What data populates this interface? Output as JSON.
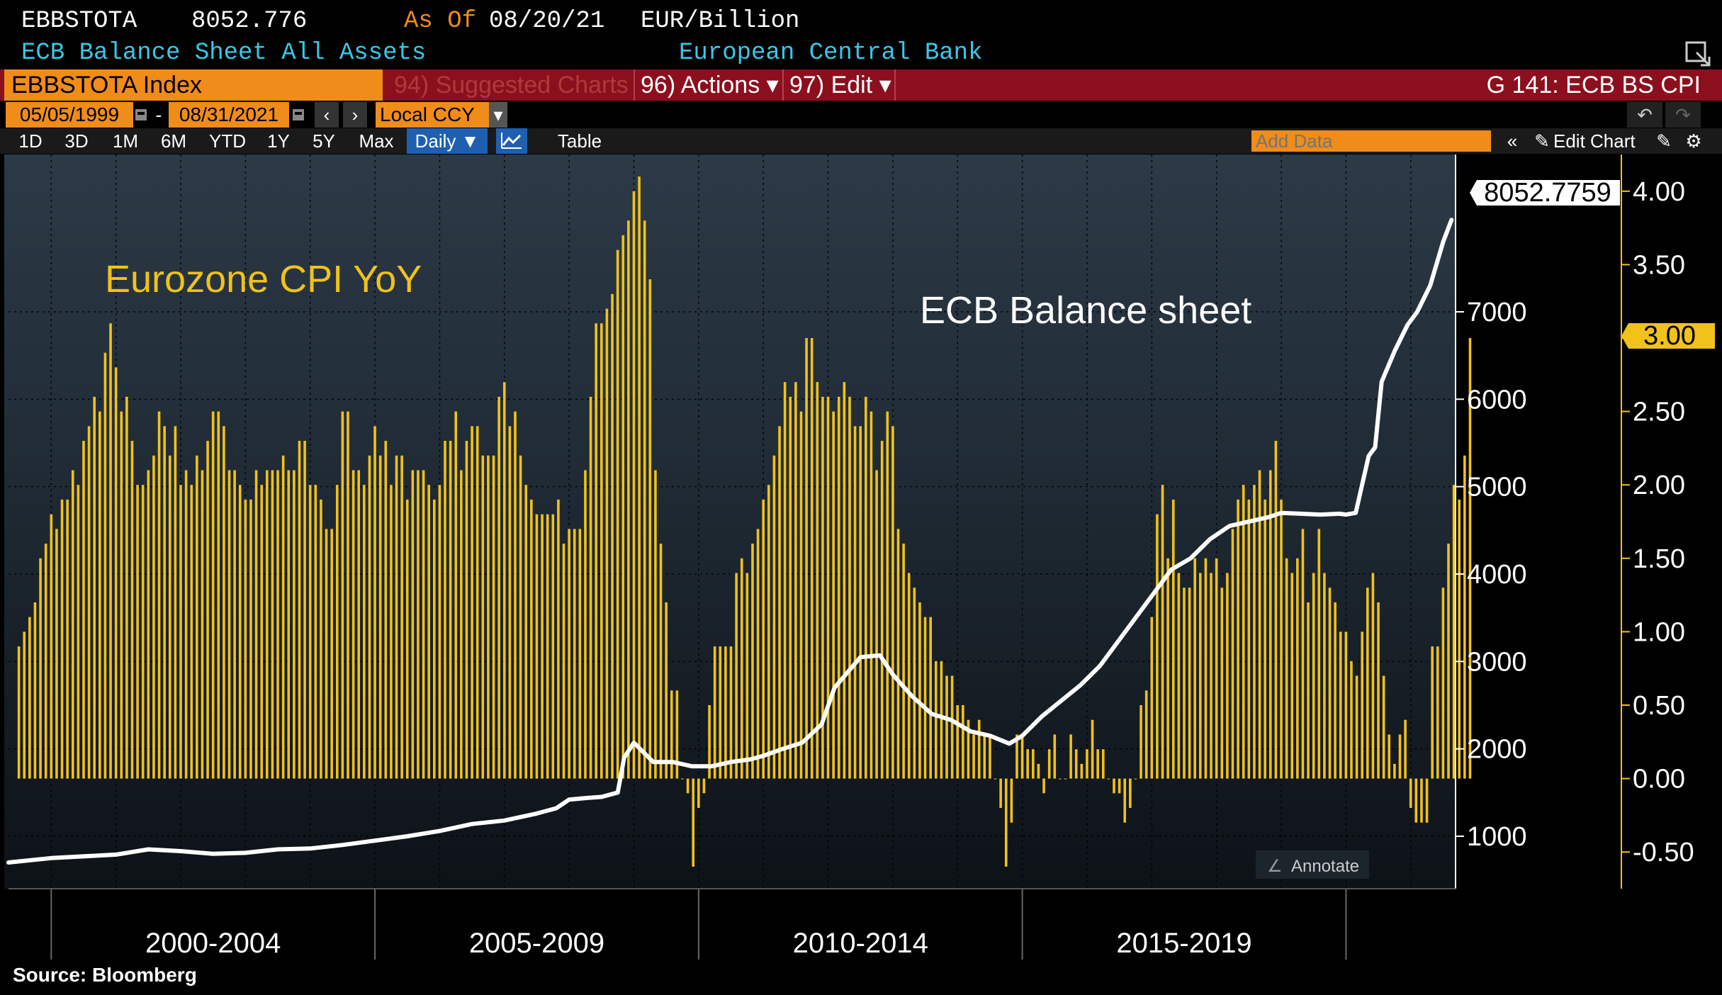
{
  "header": {
    "ticker": "EBBSTOTA",
    "last_value": "8052.776",
    "as_of_label": "As Of",
    "as_of_date": "08/20/21",
    "units": "EUR/Billion",
    "description": "ECB Balance Sheet All Assets",
    "source_name": "European Central Bank"
  },
  "toolbar": {
    "security": "EBBSTOTA Index",
    "suggested": "94) Suggested Charts",
    "actions": "96) Actions ▾",
    "edit": "97) Edit ▾",
    "chart_id": "G 141: ECB BS CPI"
  },
  "range": {
    "start": "05/05/1999",
    "dash": "-",
    "end": "08/31/2021",
    "currency": "Local CCY"
  },
  "periods": [
    "1D",
    "3D",
    "1M",
    "6M",
    "YTD",
    "1Y",
    "5Y",
    "Max"
  ],
  "frequency": "Daily ▼",
  "table_label": "Table",
  "add_data_placeholder": "Add Data",
  "edit_chart": "Edit Chart",
  "annotate_label": "Annotate",
  "footer": "Source: Bloomberg",
  "colors": {
    "bars": "#f0c21a",
    "line": "#ffffff",
    "axis_right": "#f0c21a",
    "header_cyan": "#3ac8e6",
    "header_orange": "#f08c1a",
    "red": "#8c0f1e"
  },
  "chart_data": {
    "type": "bar",
    "title": "",
    "annotations": [
      "Eurozone CPI YoY",
      "ECB Balance sheet"
    ],
    "x_labels": [
      "2000-2004",
      "2005-2009",
      "2010-2014",
      "2015-2019"
    ],
    "x_range": [
      1999.34,
      2021.67
    ],
    "series": [
      {
        "name": "Eurozone CPI YoY",
        "kind": "bar",
        "axis": "right",
        "ylim": [
          -0.75,
          4.25
        ],
        "y_ticks": [
          -0.5,
          0.0,
          0.5,
          1.0,
          1.5,
          2.0,
          2.5,
          3.0,
          3.5,
          4.0
        ],
        "y_tick_labels": [
          "-0.50",
          "0.00",
          "0.50",
          "1.00",
          "1.50",
          "2.00",
          "2.50",
          "3.00",
          "3.50",
          "4.00"
        ],
        "last_value_label": "3.00",
        "start_year": 1999.5,
        "step": 0.08333,
        "values": [
          0.9,
          1.0,
          1.1,
          1.2,
          1.5,
          1.6,
          1.8,
          1.7,
          1.9,
          1.9,
          2.1,
          2.0,
          2.3,
          2.4,
          2.6,
          2.5,
          2.9,
          3.1,
          2.8,
          2.5,
          2.6,
          2.3,
          2.0,
          2.0,
          2.1,
          2.2,
          2.5,
          2.4,
          2.2,
          2.4,
          2.0,
          2.1,
          2.0,
          2.2,
          2.1,
          2.3,
          2.5,
          2.5,
          2.4,
          2.1,
          2.1,
          2.0,
          1.9,
          1.9,
          2.1,
          2.0,
          2.1,
          2.1,
          2.1,
          2.2,
          2.1,
          2.1,
          2.3,
          2.3,
          2.0,
          2.0,
          1.9,
          1.7,
          1.7,
          2.0,
          2.5,
          2.5,
          2.1,
          2.1,
          2.0,
          2.2,
          2.4,
          2.2,
          2.3,
          2.0,
          2.2,
          2.2,
          1.9,
          2.1,
          2.1,
          2.1,
          2.0,
          1.9,
          2.0,
          2.3,
          2.3,
          2.5,
          2.1,
          2.3,
          2.4,
          2.4,
          2.2,
          2.2,
          2.2,
          2.6,
          2.7,
          2.4,
          2.5,
          2.2,
          2.0,
          1.9,
          1.8,
          1.8,
          1.8,
          1.8,
          1.9,
          1.6,
          1.7,
          1.7,
          1.7,
          2.1,
          2.6,
          3.1,
          3.1,
          3.2,
          3.3,
          3.6,
          3.7,
          3.8,
          4.0,
          4.1,
          3.8,
          3.4,
          2.1,
          1.6,
          1.2,
          0.6,
          0.6,
          0.0,
          -0.1,
          -0.6,
          -0.2,
          -0.1,
          0.5,
          0.9,
          0.9,
          0.9,
          0.9,
          1.4,
          1.5,
          1.4,
          1.6,
          1.7,
          1.9,
          2.0,
          2.2,
          2.4,
          2.7,
          2.6,
          2.7,
          2.5,
          3.0,
          3.0,
          2.7,
          2.6,
          2.6,
          2.5,
          2.6,
          2.7,
          2.6,
          2.4,
          2.4,
          2.6,
          2.5,
          2.1,
          2.3,
          2.5,
          2.4,
          1.7,
          1.6,
          1.4,
          1.3,
          1.2,
          1.1,
          1.1,
          0.8,
          0.8,
          0.7,
          0.7,
          0.5,
          0.5,
          0.4,
          0.3,
          0.4,
          0.3,
          0.3,
          0.0,
          -0.2,
          -0.6,
          -0.3,
          0.3,
          0.3,
          0.2,
          0.2,
          0.1,
          -0.1,
          0.2,
          0.3,
          0.0,
          0.0,
          0.3,
          0.2,
          0.1,
          0.2,
          0.4,
          0.2,
          0.2,
          0.0,
          -0.1,
          -0.1,
          -0.3,
          -0.2,
          0.0,
          0.5,
          0.6,
          1.1,
          1.8,
          2.0,
          1.5,
          1.9,
          1.4,
          1.3,
          1.3,
          1.5,
          1.4,
          1.5,
          1.4,
          1.5,
          1.3,
          1.4,
          1.7,
          1.9,
          2.0,
          1.9,
          2.0,
          2.1,
          1.9,
          2.1,
          2.3,
          1.9,
          1.5,
          1.4,
          1.5,
          1.7,
          1.2,
          1.4,
          1.7,
          1.4,
          1.3,
          1.2,
          1.0,
          1.0,
          0.8,
          0.7,
          1.0,
          1.3,
          1.4,
          1.2,
          0.7,
          0.3,
          0.1,
          0.3,
          0.4,
          -0.2,
          -0.3,
          -0.3,
          -0.3,
          0.9,
          0.9,
          1.3,
          1.6,
          2.0,
          1.9,
          2.2,
          3.0
        ]
      },
      {
        "name": "ECB Balance sheet",
        "kind": "line",
        "axis": "left",
        "units": "EUR/Billion",
        "ylim": [
          400,
          8800
        ],
        "y_ticks": [
          1000,
          2000,
          3000,
          4000,
          5000,
          6000,
          7000
        ],
        "last_value_label": "8052.7759",
        "points": [
          [
            1999.34,
            700
          ],
          [
            2000.0,
            750
          ],
          [
            2001.0,
            790
          ],
          [
            2001.5,
            850
          ],
          [
            2002.0,
            830
          ],
          [
            2002.5,
            800
          ],
          [
            2003.0,
            810
          ],
          [
            2003.5,
            850
          ],
          [
            2004.0,
            860
          ],
          [
            2004.5,
            900
          ],
          [
            2005.0,
            950
          ],
          [
            2005.5,
            1000
          ],
          [
            2006.0,
            1060
          ],
          [
            2006.5,
            1140
          ],
          [
            2007.0,
            1180
          ],
          [
            2007.5,
            1260
          ],
          [
            2007.8,
            1320
          ],
          [
            2008.0,
            1420
          ],
          [
            2008.3,
            1440
          ],
          [
            2008.5,
            1450
          ],
          [
            2008.75,
            1500
          ],
          [
            2008.85,
            1900
          ],
          [
            2009.0,
            2070
          ],
          [
            2009.3,
            1850
          ],
          [
            2009.6,
            1850
          ],
          [
            2009.9,
            1800
          ],
          [
            2010.2,
            1800
          ],
          [
            2010.5,
            1850
          ],
          [
            2010.8,
            1880
          ],
          [
            2011.0,
            1920
          ],
          [
            2011.3,
            2000
          ],
          [
            2011.6,
            2070
          ],
          [
            2011.9,
            2280
          ],
          [
            2012.1,
            2700
          ],
          [
            2012.5,
            3050
          ],
          [
            2012.8,
            3070
          ],
          [
            2013.0,
            2850
          ],
          [
            2013.3,
            2600
          ],
          [
            2013.6,
            2400
          ],
          [
            2013.9,
            2330
          ],
          [
            2014.2,
            2200
          ],
          [
            2014.5,
            2150
          ],
          [
            2014.8,
            2060
          ],
          [
            2015.0,
            2150
          ],
          [
            2015.3,
            2370
          ],
          [
            2015.6,
            2550
          ],
          [
            2015.9,
            2730
          ],
          [
            2016.2,
            2950
          ],
          [
            2016.5,
            3250
          ],
          [
            2016.8,
            3550
          ],
          [
            2017.0,
            3750
          ],
          [
            2017.3,
            4050
          ],
          [
            2017.6,
            4180
          ],
          [
            2017.9,
            4400
          ],
          [
            2018.2,
            4550
          ],
          [
            2018.5,
            4600
          ],
          [
            2018.8,
            4650
          ],
          [
            2019.0,
            4700
          ],
          [
            2019.3,
            4690
          ],
          [
            2019.6,
            4680
          ],
          [
            2019.9,
            4690
          ],
          [
            2020.0,
            4680
          ],
          [
            2020.15,
            4700
          ],
          [
            2020.35,
            5350
          ],
          [
            2020.45,
            5450
          ],
          [
            2020.55,
            6200
          ],
          [
            2020.75,
            6550
          ],
          [
            2020.95,
            6850
          ],
          [
            2021.1,
            7000
          ],
          [
            2021.3,
            7300
          ],
          [
            2021.5,
            7800
          ],
          [
            2021.63,
            8052.78
          ]
        ]
      }
    ]
  }
}
